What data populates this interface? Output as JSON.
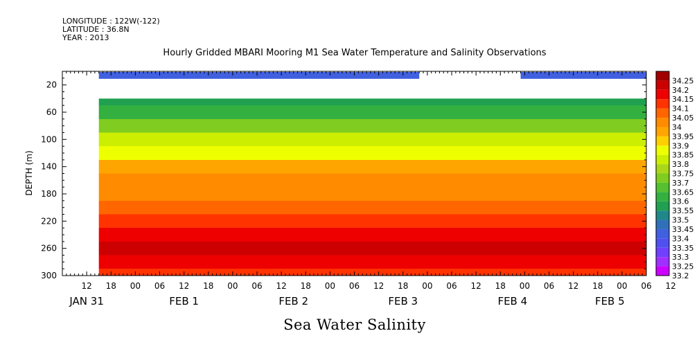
{
  "header": {
    "longitude": "LONGITUDE : 122W(-122)",
    "latitude": "LATITUDE : 36.8N",
    "year": "YEAR : 2013"
  },
  "chart_data": {
    "type": "heatmap",
    "title": "Hourly Gridded MBARI Mooring M1 Sea Water Temperature and Salinity Observations",
    "variable_label": "Sea Water Salinity",
    "ylabel": "DEPTH (m)",
    "ylim": [
      300,
      0
    ],
    "y_reversed": true,
    "y_ticks": [
      20,
      60,
      100,
      140,
      180,
      220,
      260,
      300
    ],
    "x_hours_range": [
      -18,
      126
    ],
    "x_ticks_hours": [
      -12,
      -6,
      0,
      6,
      12,
      18,
      24,
      30,
      36,
      42,
      48,
      54,
      60,
      66,
      72,
      78,
      84,
      90,
      96,
      102,
      108,
      114,
      120
    ],
    "x_tick_labels": [
      "12",
      "18",
      "00",
      "06",
      "12",
      "18",
      "00",
      "06",
      "12",
      "18",
      "00",
      "06",
      "12",
      "18",
      "00",
      "06",
      "12",
      "18",
      "00",
      "06",
      "12",
      "18",
      "00",
      "06",
      "12"
    ],
    "x_tick_label_hours": [
      -12,
      -6,
      0,
      6,
      12,
      18,
      24,
      30,
      36,
      42,
      48,
      54,
      60,
      66,
      72,
      78,
      84,
      90,
      96,
      102,
      108,
      114,
      120,
      126,
      132
    ],
    "day_labels": [
      {
        "label": "JAN 31",
        "hours": -12
      },
      {
        "label": "FEB  1",
        "hours": 12
      },
      {
        "label": "FEB  2",
        "hours": 39
      },
      {
        "label": "FEB  3",
        "hours": 66
      },
      {
        "label": "FEB  4",
        "hours": 93
      },
      {
        "label": "FEB  5",
        "hours": 117
      }
    ],
    "data_start_hours": -9,
    "surface_segments": [
      {
        "start_hours": -9,
        "end_hours": 70,
        "depth_range": [
          0,
          10
        ],
        "value": 33.4
      },
      {
        "start_hours": 95,
        "end_hours": 126,
        "depth_range": [
          0,
          10
        ],
        "value": 33.4
      }
    ],
    "profile_depth_range": [
      40,
      300
    ],
    "depth_profile": [
      {
        "depth": 40,
        "value": 33.55
      },
      {
        "depth": 60,
        "value": 33.62
      },
      {
        "depth": 80,
        "value": 33.72
      },
      {
        "depth": 100,
        "value": 33.8
      },
      {
        "depth": 120,
        "value": 33.88
      },
      {
        "depth": 140,
        "value": 33.95
      },
      {
        "depth": 160,
        "value": 34.0
      },
      {
        "depth": 180,
        "value": 34.02
      },
      {
        "depth": 200,
        "value": 34.06
      },
      {
        "depth": 220,
        "value": 34.12
      },
      {
        "depth": 240,
        "value": 34.18
      },
      {
        "depth": 260,
        "value": 34.22
      },
      {
        "depth": 280,
        "value": 34.16
      },
      {
        "depth": 300,
        "value": 34.12
      }
    ],
    "colorbar": {
      "levels": [
        33.2,
        33.25,
        33.3,
        33.35,
        33.4,
        33.45,
        33.5,
        33.55,
        33.6,
        33.65,
        33.7,
        33.75,
        33.8,
        33.85,
        33.9,
        33.95,
        34,
        34.05,
        34.1,
        34.15,
        34.2,
        34.25
      ],
      "labels": [
        "33.2",
        "33.25",
        "33.3",
        "33.35",
        "33.4",
        "33.45",
        "33.5",
        "33.55",
        "33.6",
        "33.65",
        "33.7",
        "33.75",
        "33.8",
        "33.85",
        "33.9",
        "33.95",
        "34",
        "34.05",
        "34.1",
        "34.15",
        "34.2",
        "34.25"
      ],
      "colors": [
        "#cc00ff",
        "#a030ff",
        "#7040ff",
        "#5050f0",
        "#4060e0",
        "#3070b8",
        "#208888",
        "#20a050",
        "#33b040",
        "#55c030",
        "#80cc20",
        "#aad818",
        "#ccee00",
        "#eeff00",
        "#ffd000",
        "#ffa500",
        "#ff8c00",
        "#ff6600",
        "#ff3300",
        "#ee0000",
        "#cc0000",
        "#a00000"
      ]
    }
  }
}
